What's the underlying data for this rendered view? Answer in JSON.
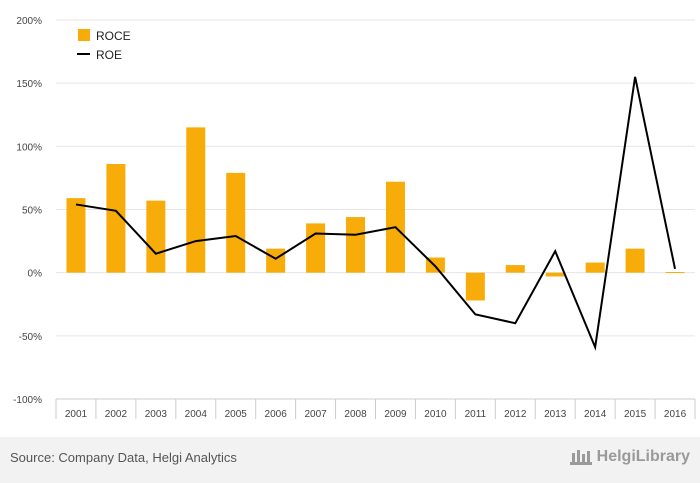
{
  "chart_data": {
    "type": "bar",
    "categories": [
      "2001",
      "2002",
      "2003",
      "2004",
      "2005",
      "2006",
      "2007",
      "2008",
      "2009",
      "2010",
      "2011",
      "2012",
      "2013",
      "2014",
      "2015",
      "2016"
    ],
    "series": [
      {
        "name": "ROCE",
        "type": "bar",
        "color": "#f7ac0a",
        "values": [
          59,
          86,
          57,
          115,
          79,
          19,
          39,
          44,
          72,
          12,
          -22,
          6,
          -3,
          8,
          19,
          0.5
        ]
      },
      {
        "name": "ROE",
        "type": "line",
        "color": "#000000",
        "values": [
          54,
          49,
          15,
          25,
          29,
          11,
          31,
          30,
          36,
          5,
          -33,
          -40,
          17,
          -59,
          155,
          3
        ]
      }
    ],
    "ylim": [
      -100,
      200
    ],
    "yticks": [
      -100,
      -50,
      0,
      50,
      100,
      150,
      200
    ],
    "ytick_labels": [
      "-100%",
      "-50%",
      "0%",
      "50%",
      "100%",
      "150%",
      "200%"
    ],
    "grid": true,
    "legend": "top-left"
  },
  "footer": {
    "source": "Source: Company Data, Helgi Analytics",
    "brand": "HelgiLibrary",
    "brand_icon": "helgi-library-icon"
  }
}
